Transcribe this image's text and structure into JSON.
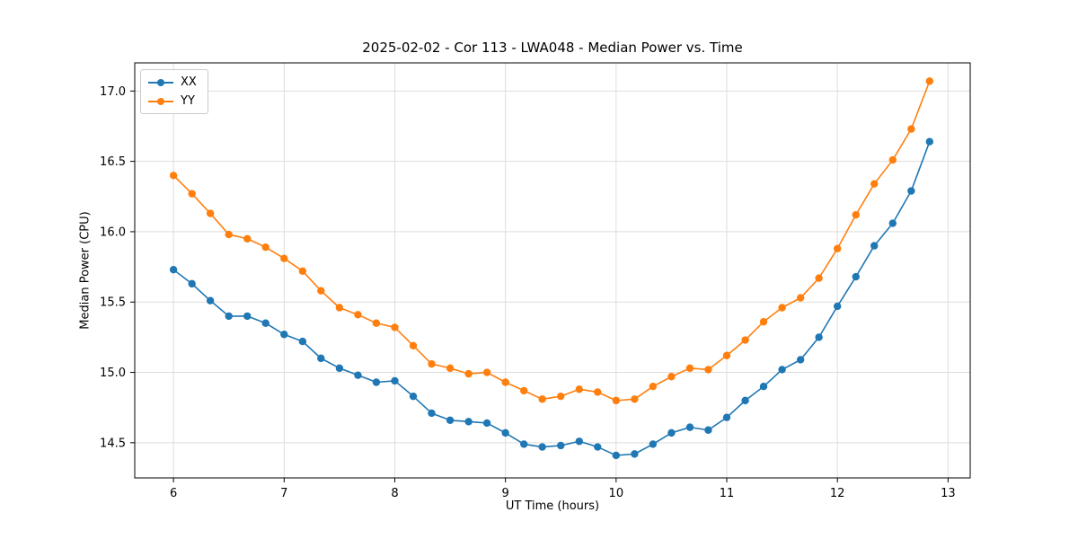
{
  "chart_data": {
    "type": "line",
    "title": "2025-02-02 - Cor 113 - LWA048 - Median Power vs. Time",
    "xlabel": "UT Time (hours)",
    "ylabel": "Median Power (CPU)",
    "xlim": [
      5.65,
      13.2
    ],
    "ylim": [
      14.25,
      17.2
    ],
    "xticks": [
      6,
      7,
      8,
      9,
      10,
      11,
      12,
      13
    ],
    "xtick_labels": [
      "6",
      "7",
      "8",
      "9",
      "10",
      "11",
      "12",
      "13"
    ],
    "yticks": [
      14.5,
      15.0,
      15.5,
      16.0,
      16.5,
      17.0
    ],
    "ytick_labels": [
      "14.5",
      "15.0",
      "15.5",
      "16.0",
      "16.5",
      "17.0"
    ],
    "grid": true,
    "legend_position": "upper left",
    "grid_color": "#dddddd",
    "axis_color": "#000000",
    "x": [
      6.0,
      6.167,
      6.333,
      6.5,
      6.667,
      6.833,
      7.0,
      7.167,
      7.333,
      7.5,
      7.667,
      7.833,
      8.0,
      8.167,
      8.333,
      8.5,
      8.667,
      8.833,
      9.0,
      9.167,
      9.333,
      9.5,
      9.667,
      9.833,
      10.0,
      10.167,
      10.333,
      10.5,
      10.667,
      10.833,
      11.0,
      11.167,
      11.333,
      11.5,
      11.667,
      11.833,
      12.0,
      12.167,
      12.333,
      12.5,
      12.667,
      12.833
    ],
    "series": [
      {
        "name": "XX",
        "color": "#1f77b4",
        "values": [
          15.73,
          15.63,
          15.51,
          15.4,
          15.4,
          15.35,
          15.27,
          15.22,
          15.1,
          15.03,
          14.98,
          14.93,
          14.94,
          14.83,
          14.71,
          14.66,
          14.65,
          14.64,
          14.57,
          14.49,
          14.47,
          14.48,
          14.51,
          14.47,
          14.41,
          14.42,
          14.49,
          14.57,
          14.61,
          14.59,
          14.68,
          14.8,
          14.9,
          15.02,
          15.09,
          15.25,
          15.47,
          15.68,
          15.9,
          16.06,
          16.29,
          16.64
        ]
      },
      {
        "name": "YY",
        "color": "#ff7f0e",
        "values": [
          16.4,
          16.27,
          16.13,
          15.98,
          15.95,
          15.89,
          15.81,
          15.72,
          15.58,
          15.46,
          15.41,
          15.35,
          15.32,
          15.19,
          15.06,
          15.03,
          14.99,
          15.0,
          14.93,
          14.87,
          14.81,
          14.83,
          14.88,
          14.86,
          14.8,
          14.81,
          14.9,
          14.97,
          15.03,
          15.02,
          15.12,
          15.23,
          15.36,
          15.46,
          15.53,
          15.67,
          15.88,
          16.12,
          16.34,
          16.51,
          16.73,
          17.07
        ]
      }
    ]
  }
}
